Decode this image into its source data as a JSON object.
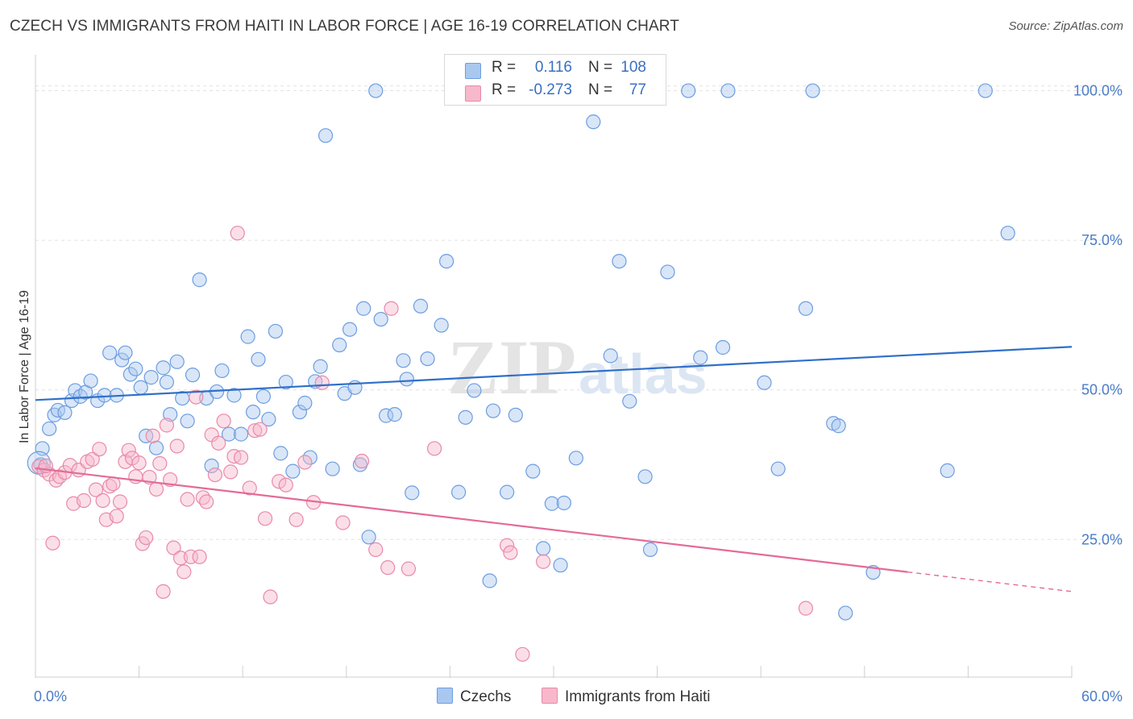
{
  "title": "CZECH VS IMMIGRANTS FROM HAITI IN LABOR FORCE | AGE 16-19 CORRELATION CHART",
  "source": "Source: ZipAtlas.com",
  "watermark": {
    "zip": "ZIP",
    "atlas": "atlas"
  },
  "legend": {
    "rows": [
      {
        "r_label": "R =",
        "r_value": "0.116",
        "n_label": "N =",
        "n_value": "108",
        "color": "#a9c8f0",
        "border": "#6d9de0"
      },
      {
        "r_label": "R =",
        "r_value": "-0.273",
        "n_label": "N =",
        "n_value": "77",
        "color": "#f7b8cc",
        "border": "#e88aa8"
      }
    ]
  },
  "bottom_legend": [
    {
      "label": "Czechs",
      "color": "#a9c8f0",
      "border": "#6d9de0"
    },
    {
      "label": "Immigrants from Haiti",
      "color": "#f7b8cc",
      "border": "#e88aa8"
    }
  ],
  "chart_data": {
    "type": "scatter",
    "xlabel": "",
    "ylabel": "In Labor Force | Age 16-19",
    "xlim": [
      0,
      60
    ],
    "ylim": [
      2,
      106
    ],
    "x_tick_labels": [
      "0.0%",
      "60.0%"
    ],
    "y_ticks": [
      25,
      50,
      75,
      100
    ],
    "y_tick_labels": [
      "25.0%",
      "50.0%",
      "75.0%",
      "100.0%"
    ],
    "grid": true,
    "legend_position": "top-center",
    "colors": {
      "czechs_fill": "#a9c8f0",
      "czechs_stroke": "#6d9de0",
      "czechs_line": "#2f6fc9",
      "haiti_fill": "#f7b8cc",
      "haiti_stroke": "#e88aa8",
      "haiti_line": "#e46a98"
    },
    "series": [
      {
        "name": "Czechs",
        "trend": {
          "x0": 0,
          "y0": 48.3,
          "x1": 60,
          "y1": 57.2,
          "dashed_from": null
        },
        "points": [
          [
            0.3,
            37.5
          ],
          [
            0.4,
            40.2
          ],
          [
            0.8,
            43.5
          ],
          [
            1.1,
            45.8
          ],
          [
            1.3,
            46.6
          ],
          [
            1.7,
            46.2
          ],
          [
            2.1,
            48.2
          ],
          [
            2.3,
            49.9
          ],
          [
            2.6,
            48.9
          ],
          [
            2.9,
            49.6
          ],
          [
            3.2,
            51.5
          ],
          [
            3.6,
            48.2
          ],
          [
            4.0,
            49.1
          ],
          [
            4.3,
            56.2
          ],
          [
            4.7,
            49.1
          ],
          [
            5.0,
            55.0
          ],
          [
            5.2,
            56.2
          ],
          [
            5.5,
            52.6
          ],
          [
            5.8,
            53.5
          ],
          [
            6.1,
            50.4
          ],
          [
            6.4,
            42.3
          ],
          [
            6.7,
            52.1
          ],
          [
            7.0,
            40.3
          ],
          [
            7.4,
            53.7
          ],
          [
            7.6,
            51.3
          ],
          [
            7.8,
            45.9
          ],
          [
            8.2,
            54.7
          ],
          [
            8.5,
            48.6
          ],
          [
            8.8,
            44.8
          ],
          [
            9.1,
            52.5
          ],
          [
            9.5,
            68.4
          ],
          [
            9.9,
            48.6
          ],
          [
            10.2,
            37.3
          ],
          [
            10.5,
            49.7
          ],
          [
            10.8,
            53.2
          ],
          [
            11.2,
            42.6
          ],
          [
            11.5,
            49.1
          ],
          [
            11.9,
            42.6
          ],
          [
            12.3,
            58.9
          ],
          [
            12.6,
            46.3
          ],
          [
            12.9,
            55.1
          ],
          [
            13.2,
            48.9
          ],
          [
            13.5,
            45.1
          ],
          [
            13.9,
            59.8
          ],
          [
            14.2,
            39.4
          ],
          [
            14.5,
            51.3
          ],
          [
            14.9,
            36.4
          ],
          [
            15.3,
            46.3
          ],
          [
            15.6,
            47.8
          ],
          [
            15.9,
            38.7
          ],
          [
            16.2,
            51.4
          ],
          [
            16.5,
            53.9
          ],
          [
            16.8,
            92.5
          ],
          [
            17.2,
            36.8
          ],
          [
            17.6,
            57.5
          ],
          [
            17.9,
            49.4
          ],
          [
            18.2,
            60.1
          ],
          [
            18.5,
            50.4
          ],
          [
            18.8,
            37.5
          ],
          [
            19.0,
            63.6
          ],
          [
            19.3,
            25.4
          ],
          [
            19.7,
            100.0
          ],
          [
            20.0,
            61.8
          ],
          [
            20.3,
            45.7
          ],
          [
            20.8,
            45.9
          ],
          [
            21.3,
            54.9
          ],
          [
            21.5,
            51.8
          ],
          [
            21.8,
            32.8
          ],
          [
            22.3,
            64.0
          ],
          [
            22.7,
            55.2
          ],
          [
            23.5,
            60.8
          ],
          [
            23.8,
            71.5
          ],
          [
            24.5,
            32.9
          ],
          [
            24.9,
            45.4
          ],
          [
            25.4,
            49.9
          ],
          [
            26.3,
            18.1
          ],
          [
            26.5,
            46.5
          ],
          [
            27.3,
            32.9
          ],
          [
            27.8,
            45.8
          ],
          [
            28.5,
            100.0
          ],
          [
            28.8,
            36.4
          ],
          [
            29.4,
            23.5
          ],
          [
            29.9,
            31.0
          ],
          [
            30.4,
            20.7
          ],
          [
            30.6,
            31.1
          ],
          [
            31.3,
            38.6
          ],
          [
            32.3,
            94.8
          ],
          [
            33.3,
            55.7
          ],
          [
            33.8,
            71.5
          ],
          [
            34.4,
            48.1
          ],
          [
            35.3,
            35.5
          ],
          [
            35.6,
            23.3
          ],
          [
            36.6,
            69.7
          ],
          [
            37.8,
            100.0
          ],
          [
            38.5,
            55.4
          ],
          [
            39.8,
            57.1
          ],
          [
            40.1,
            100.0
          ],
          [
            42.2,
            51.2
          ],
          [
            43.0,
            36.8
          ],
          [
            44.6,
            63.6
          ],
          [
            45.0,
            100.0
          ],
          [
            46.2,
            44.4
          ],
          [
            46.5,
            44.0
          ],
          [
            46.9,
            12.7
          ],
          [
            48.5,
            19.5
          ],
          [
            52.8,
            36.5
          ],
          [
            55.0,
            100.0
          ],
          [
            56.3,
            76.2
          ]
        ]
      },
      {
        "name": "Immigrants from Haiti",
        "trend": {
          "x0": 0,
          "y0": 36.9,
          "x1": 60,
          "y1": 16.3,
          "dashed_from": 50.5
        },
        "points": [
          [
            0.2,
            37.2
          ],
          [
            0.5,
            36.6
          ],
          [
            0.8,
            35.9
          ],
          [
            1.0,
            24.4
          ],
          [
            1.2,
            34.9
          ],
          [
            1.4,
            35.5
          ],
          [
            1.7,
            36.2
          ],
          [
            2.0,
            37.4
          ],
          [
            2.2,
            31.0
          ],
          [
            2.5,
            36.6
          ],
          [
            2.8,
            31.5
          ],
          [
            3.0,
            38.0
          ],
          [
            3.3,
            38.4
          ],
          [
            3.5,
            33.3
          ],
          [
            3.7,
            40.1
          ],
          [
            3.9,
            31.5
          ],
          [
            4.1,
            28.3
          ],
          [
            4.3,
            33.9
          ],
          [
            4.5,
            34.3
          ],
          [
            4.7,
            28.9
          ],
          [
            4.9,
            31.3
          ],
          [
            5.2,
            38.0
          ],
          [
            5.4,
            39.9
          ],
          [
            5.6,
            38.6
          ],
          [
            5.8,
            35.5
          ],
          [
            6.0,
            37.8
          ],
          [
            6.2,
            24.3
          ],
          [
            6.4,
            25.3
          ],
          [
            6.6,
            35.4
          ],
          [
            6.8,
            42.3
          ],
          [
            7.0,
            33.4
          ],
          [
            7.2,
            37.7
          ],
          [
            7.4,
            16.3
          ],
          [
            7.6,
            44.1
          ],
          [
            7.8,
            35.0
          ],
          [
            8.0,
            23.6
          ],
          [
            8.2,
            40.6
          ],
          [
            8.4,
            21.9
          ],
          [
            8.6,
            19.6
          ],
          [
            8.8,
            31.7
          ],
          [
            9.0,
            22.1
          ],
          [
            9.3,
            48.8
          ],
          [
            9.5,
            22.1
          ],
          [
            9.7,
            32.0
          ],
          [
            9.9,
            31.3
          ],
          [
            10.2,
            42.5
          ],
          [
            10.4,
            35.8
          ],
          [
            10.6,
            41.1
          ],
          [
            10.9,
            44.8
          ],
          [
            11.3,
            36.3
          ],
          [
            11.5,
            38.9
          ],
          [
            11.7,
            76.2
          ],
          [
            11.9,
            38.7
          ],
          [
            12.4,
            33.6
          ],
          [
            12.7,
            43.2
          ],
          [
            13.0,
            43.4
          ],
          [
            13.3,
            28.5
          ],
          [
            13.6,
            15.4
          ],
          [
            14.1,
            34.7
          ],
          [
            14.5,
            34.1
          ],
          [
            15.1,
            28.3
          ],
          [
            15.6,
            37.9
          ],
          [
            16.1,
            31.2
          ],
          [
            16.6,
            51.2
          ],
          [
            17.8,
            27.8
          ],
          [
            18.9,
            38.1
          ],
          [
            19.7,
            23.3
          ],
          [
            20.4,
            20.3
          ],
          [
            20.6,
            63.6
          ],
          [
            21.6,
            20.1
          ],
          [
            23.1,
            40.2
          ],
          [
            27.3,
            24.0
          ],
          [
            27.5,
            22.8
          ],
          [
            28.2,
            5.8
          ],
          [
            29.4,
            21.3
          ],
          [
            44.6,
            13.5
          ],
          [
            0.6,
            37.3
          ]
        ]
      }
    ]
  }
}
